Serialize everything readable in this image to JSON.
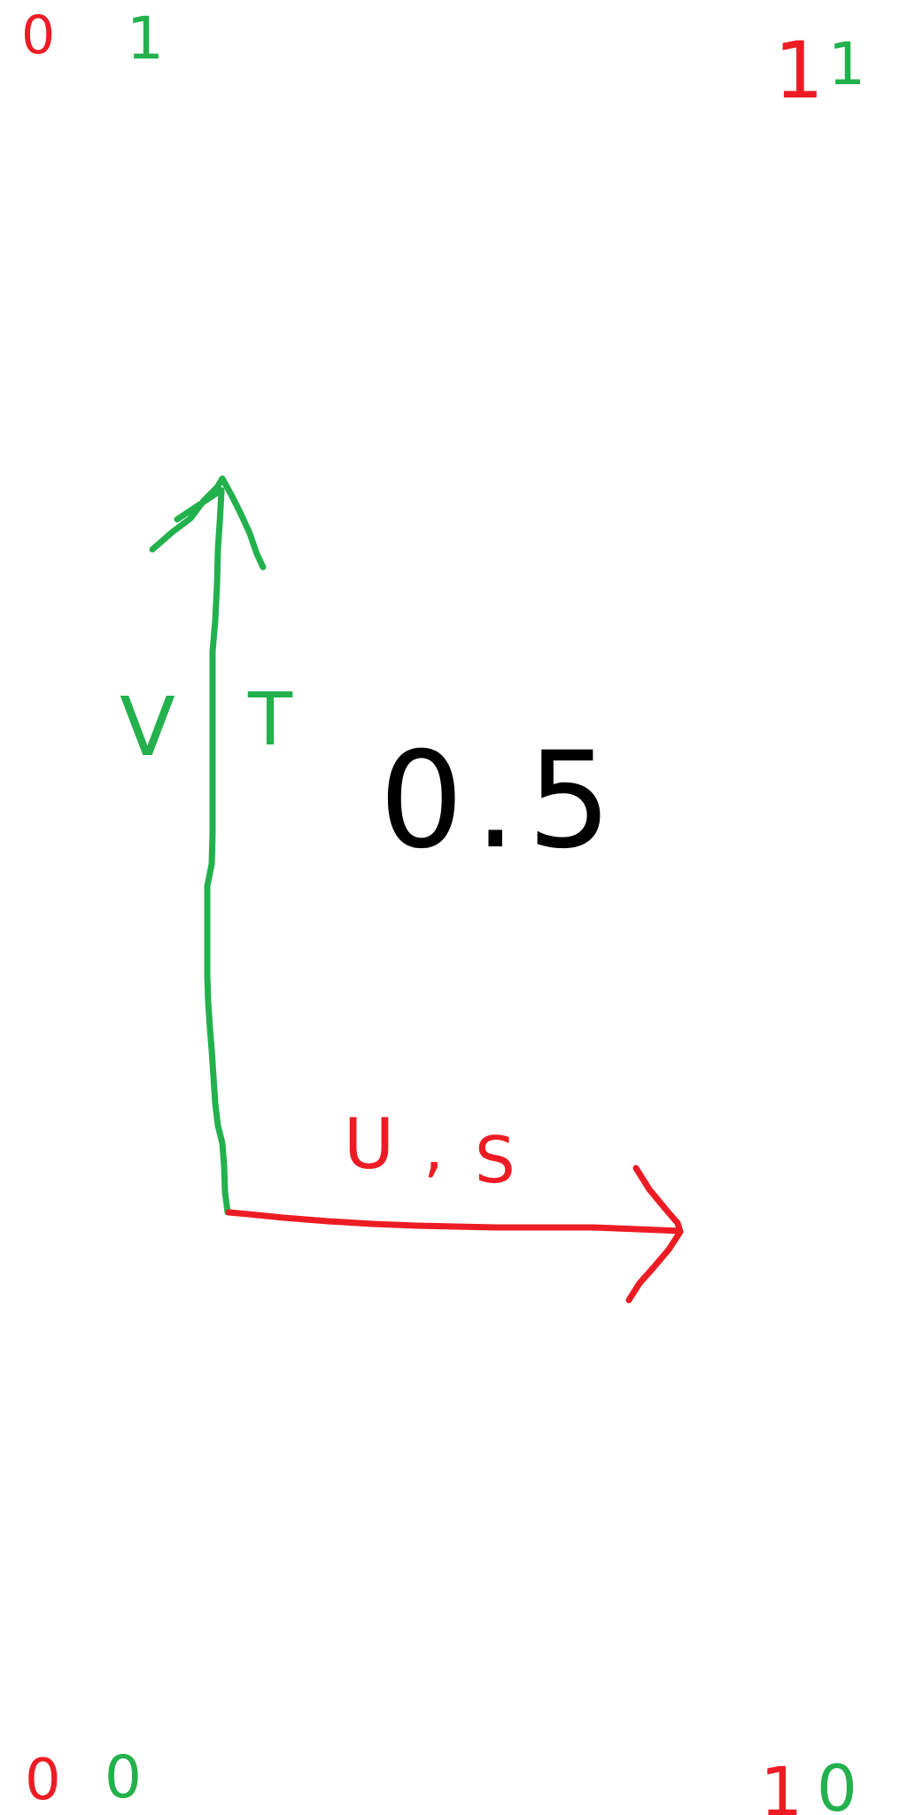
{
  "corners": {
    "top_left": {
      "first": "0",
      "second": "1"
    },
    "top_right": {
      "first": "1",
      "second": "1"
    },
    "bottom_left": {
      "first": "0",
      "second": "0"
    },
    "bottom_right": {
      "first": "1",
      "second": "0"
    }
  },
  "axes": {
    "vertical_label_a": "V",
    "vertical_label_b": "T",
    "horizontal_label_a": "U",
    "horizontal_label_b": ",",
    "horizontal_label_c": "S"
  },
  "center_value": "0.5",
  "colors": {
    "red": "#ed1c24",
    "green": "#22b14c",
    "black": "#000000"
  }
}
